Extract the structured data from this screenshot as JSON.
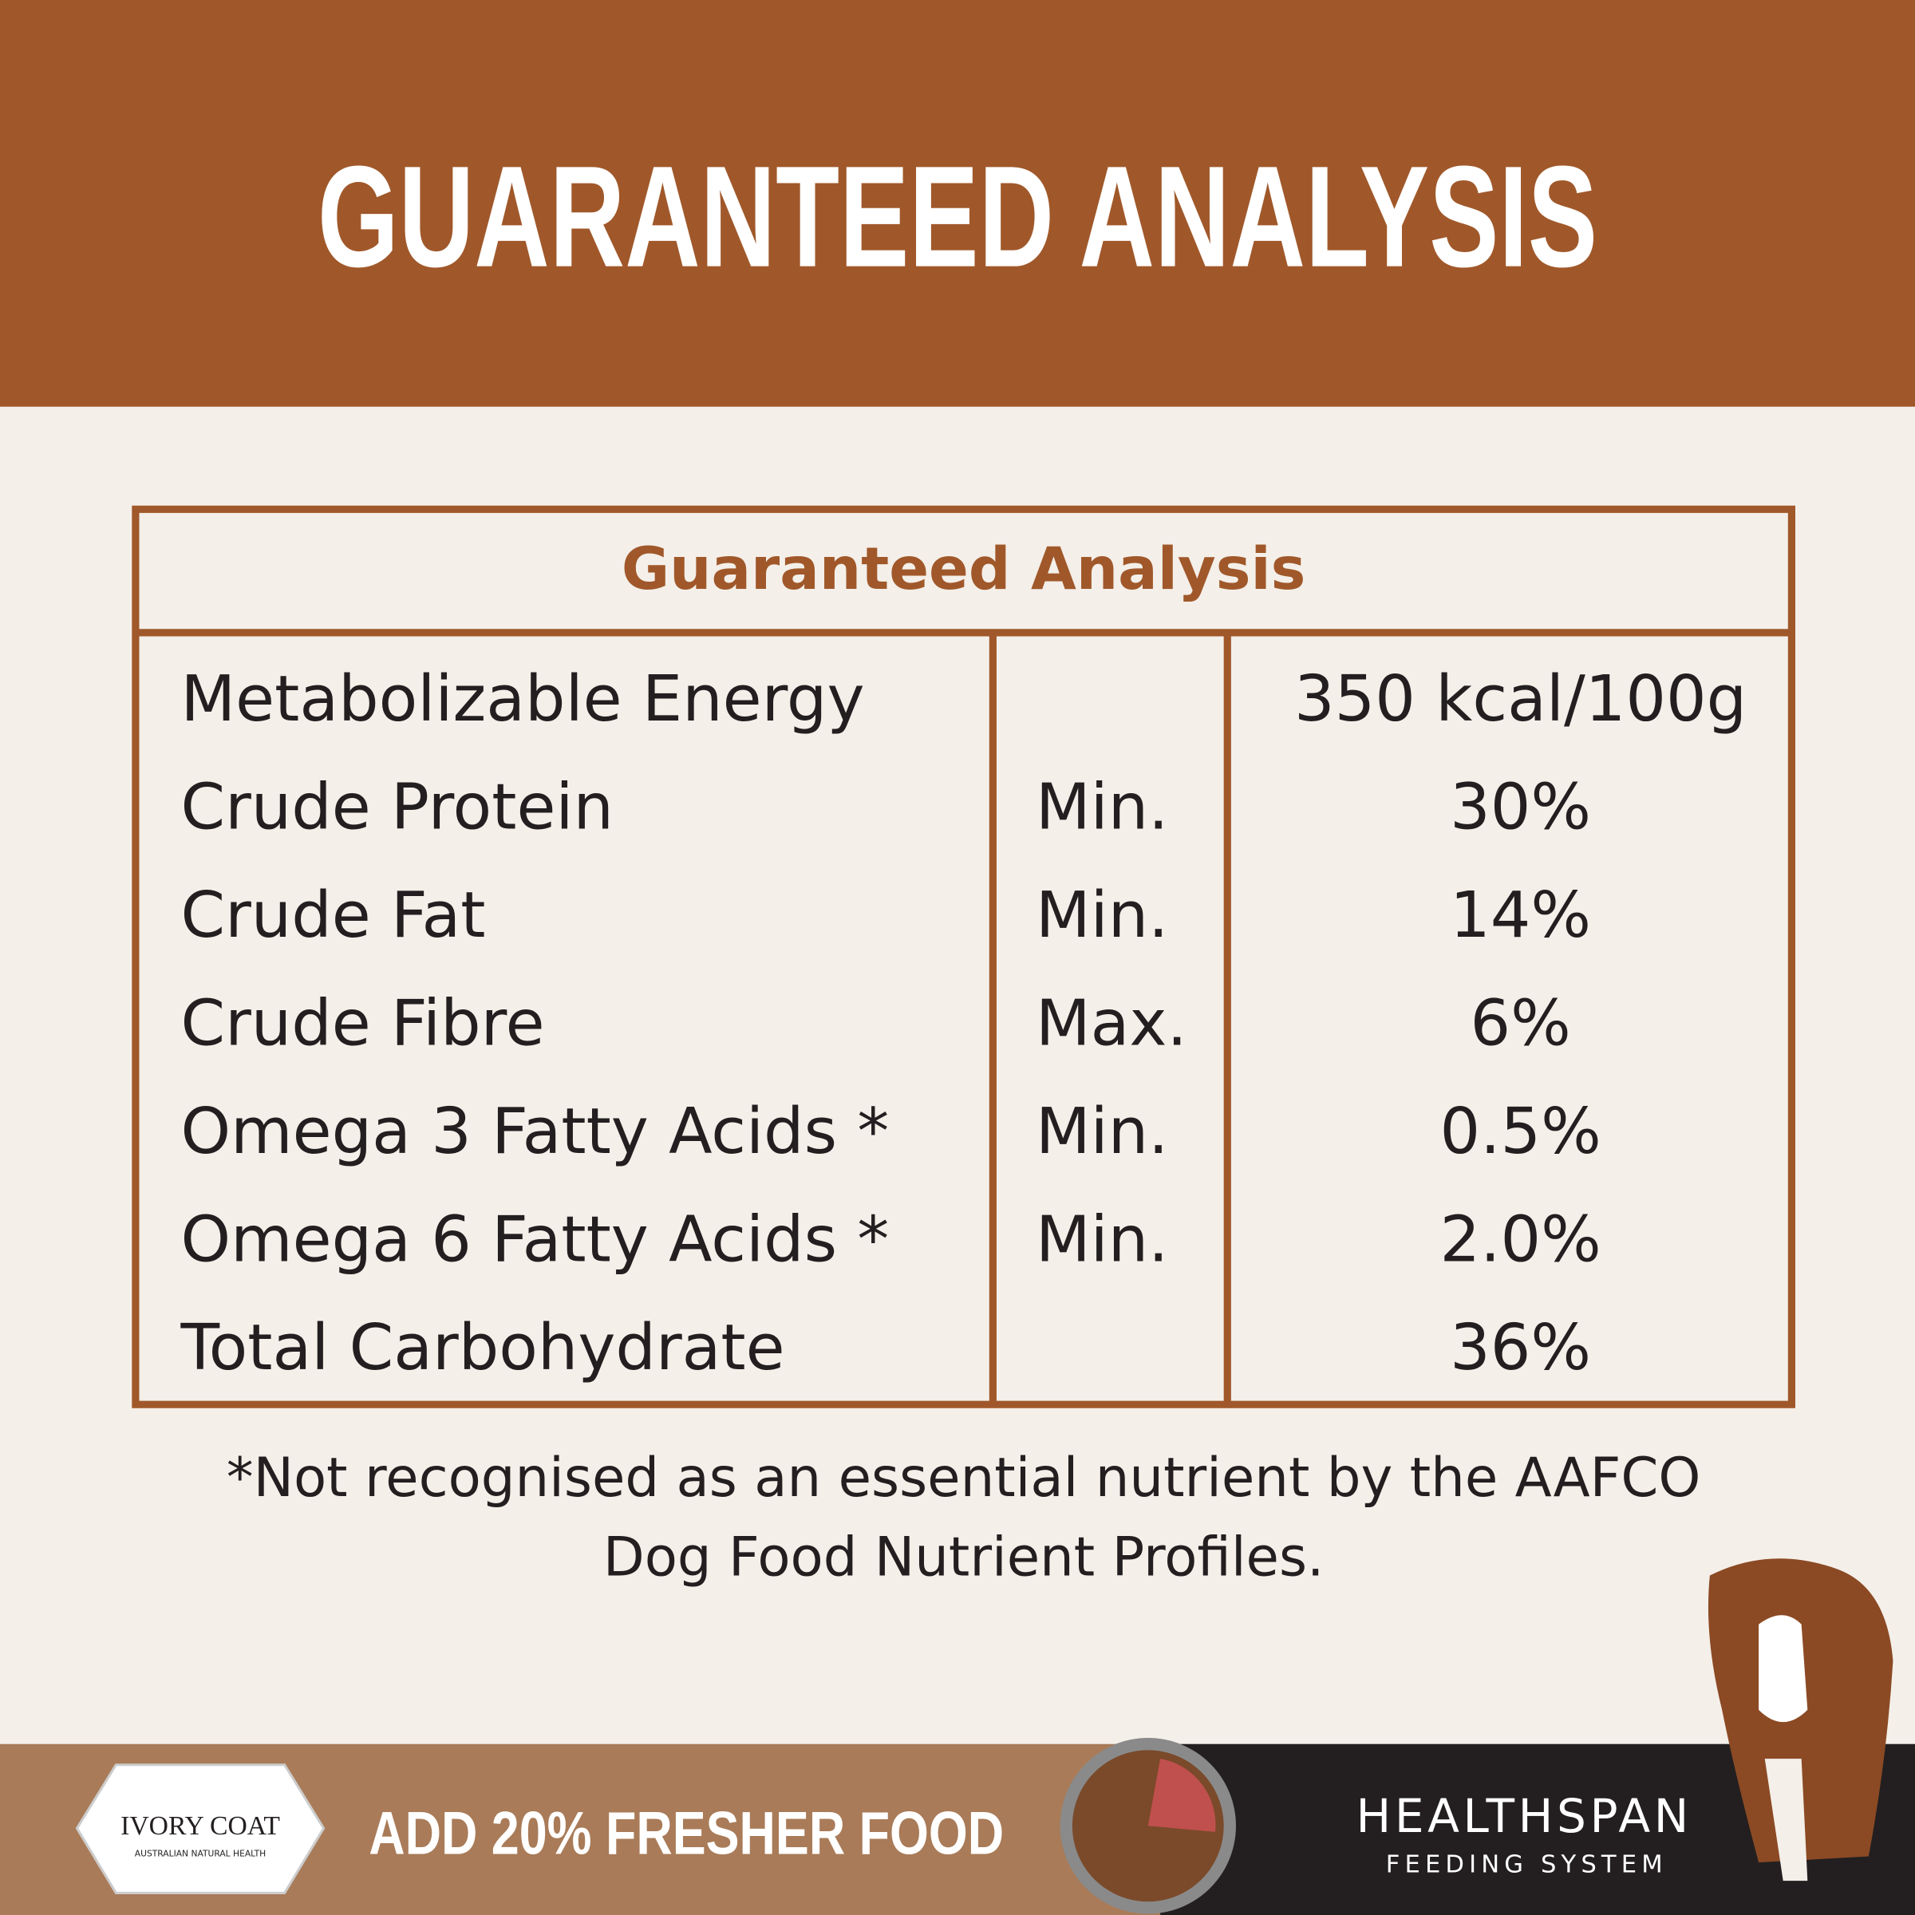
{
  "header": {
    "title": "GUARANTEED ANALYSIS"
  },
  "table": {
    "title": "Guaranteed Analysis",
    "rows": [
      [
        "Metabolizable Energy",
        null,
        "350 kcal/100g"
      ],
      [
        "Crude Protein",
        "Min.",
        "30%"
      ],
      [
        "Crude Fat",
        "Min.",
        "14%"
      ],
      [
        "Crude Fibre",
        "Max.",
        "6%"
      ],
      [
        "Omega 3 Fatty Acids *",
        "Min.",
        "0.5%"
      ],
      [
        "Omega 6 Fatty Acids *",
        "Min.",
        "2.0%"
      ],
      [
        "Total Carbohydrate",
        null,
        "36%"
      ]
    ]
  },
  "footnote": [
    "*Not recognised as an essential nutrient by the AAFCO",
    "Dog Food Nutrient Profiles."
  ],
  "footer": {
    "logo": "IVORY COAT",
    "logo_tagline": "AUSTRALIAN NATURAL HEALTH",
    "slogan": "ADD 20% FRESHER FOOD",
    "brand": "HEALTHSPAN",
    "brand_tagline": "FEEDING SYSTEM"
  }
}
